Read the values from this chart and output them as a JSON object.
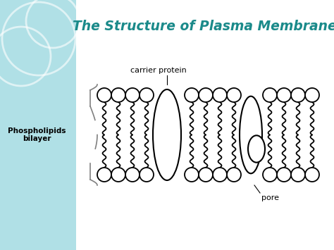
{
  "title": "The Structure of Plasma Membrane",
  "title_color": "#1a8a8a",
  "bg_left_color": "#b0e0e6",
  "bg_right_color": "#ffffff",
  "label_phospholipids": "Phospholipids\nbilayer",
  "label_carrier": "carrier protein",
  "label_pore": "pore",
  "figsize": [
    4.74,
    3.55
  ],
  "dpi": 100
}
